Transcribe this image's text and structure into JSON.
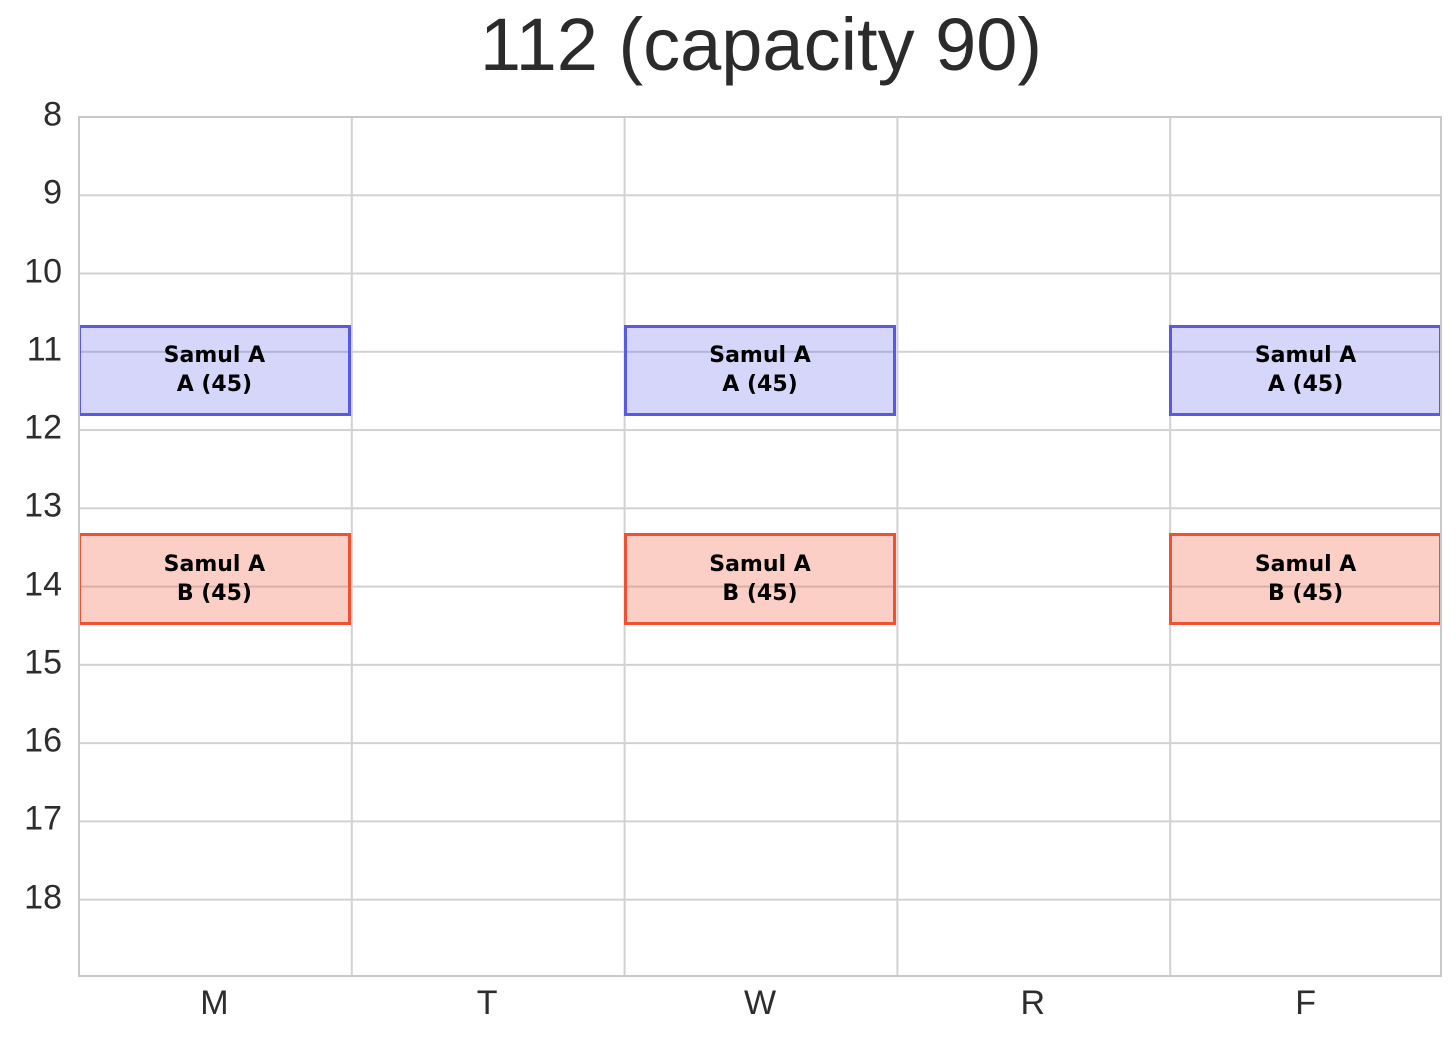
{
  "title": "112 (capacity 90)",
  "colors": {
    "background": "#ffffff",
    "grid_line": "#d2d2d2",
    "plot_border": "#c9c9c9",
    "title_text": "#2b2b2b",
    "tick_text": "#2d2d2d",
    "event_text": "#000000",
    "section_a_fill_solid": "#d2d2fb",
    "section_a_border": "#5a5ae0",
    "section_b_fill_solid": "#f9ccc4",
    "section_b_border": "#ef5232"
  },
  "chart_data": {
    "type": "table",
    "subtype": "weekly-schedule-grid",
    "title": "112 (capacity 90)",
    "room": "112",
    "capacity": 90,
    "x_categories": [
      "M",
      "T",
      "W",
      "R",
      "F"
    ],
    "y_ticks": [
      8,
      9,
      10,
      11,
      12,
      13,
      14,
      15,
      16,
      17,
      18
    ],
    "y_min": 8,
    "y_max": 19,
    "y_axis_inverted_top_is_min": true,
    "grid": true,
    "legend": "none",
    "events": [
      {
        "title": "Samul A",
        "section_label": "A (45)",
        "section": "A",
        "enrollment": 45,
        "day_names": [
          "M",
          "W",
          "F"
        ],
        "days": [
          0,
          2,
          4
        ],
        "start_hour": 10.667,
        "end_hour": 11.833,
        "start_time": "10:40",
        "end_time": "11:50",
        "fill": "rgba(85, 85, 235, 0.24)",
        "border": "#5a5ae0"
      },
      {
        "title": "Samul A",
        "section_label": "B (45)",
        "section": "B",
        "enrollment": 45,
        "day_names": [
          "M",
          "W",
          "F"
        ],
        "days": [
          0,
          2,
          4
        ],
        "start_hour": 13.333,
        "end_hour": 14.5,
        "start_time": "13:20",
        "end_time": "14:30",
        "fill": "rgba(240, 82, 50, 0.28)",
        "border": "#ef5232"
      }
    ]
  }
}
